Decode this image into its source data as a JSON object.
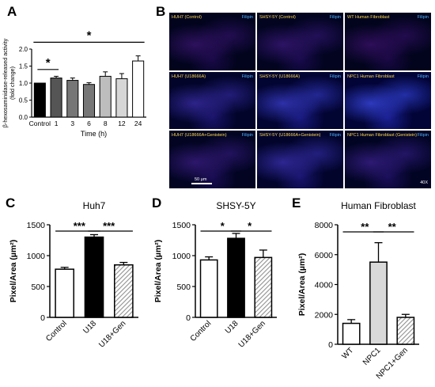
{
  "panels": {
    "a": "A",
    "b": "B",
    "c": "C",
    "d": "D",
    "e": "E"
  },
  "colors": {
    "black": "#000000",
    "dark_gray": "#555555",
    "mid_gray": "#767676",
    "light_gray": "#bdbdbd",
    "lighter_gray": "#d6d6d6",
    "white": "#ffffff",
    "hatch": "#909090"
  },
  "microscopy": {
    "stain": "Filipin",
    "scale_bar": "50 µm",
    "magnification": "40X",
    "cells": [
      {
        "title": "HUH7 (Control)",
        "stain": "Filipin",
        "intensity": 0.25
      },
      {
        "title": "SHSY-5Y (Control)",
        "stain": "Filipin",
        "intensity": 0.3
      },
      {
        "title": "WT Human Fibroblast",
        "stain": "Filipin",
        "intensity": 0.22
      },
      {
        "title": "HUH7 (U18666A)",
        "stain": "Filipin",
        "intensity": 0.55
      },
      {
        "title": "SHSY-5Y (U18666A)",
        "stain": "Filipin",
        "intensity": 0.75
      },
      {
        "title": "NPC1 Human Fibroblast",
        "stain": "Filipin",
        "intensity": 0.9
      },
      {
        "title": "HUH7 (U18666A+Genistein)",
        "stain": "Filipin",
        "intensity": 0.35
      },
      {
        "title": "SHSY-5Y (U18666A+Genistein)",
        "stain": "Filipin",
        "intensity": 0.6
      },
      {
        "title": "NPC1 Human Fibroblast (Genistein)",
        "stain": "Filipin",
        "intensity": 0.4
      }
    ]
  },
  "chart_data": [
    {
      "id": "A",
      "type": "bar",
      "title": "",
      "xlabel": "Time (h)",
      "ylabel": "β-hexosaminidase-released activity (fold change)",
      "ylim": [
        0,
        2.0
      ],
      "yticks": [
        "0.0",
        "0.5",
        "1.0",
        "1.5",
        "2.0"
      ],
      "categories": [
        "Control",
        "1",
        "3",
        "6",
        "8",
        "12",
        "24"
      ],
      "values": [
        1.0,
        1.15,
        1.08,
        0.96,
        1.2,
        1.13,
        1.65
      ],
      "errors": [
        0.0,
        0.05,
        0.07,
        0.05,
        0.13,
        0.15,
        0.15
      ],
      "bar_colors": [
        "#000000",
        "#555555",
        "#767676",
        "#767676",
        "#bdbdbd",
        "#d6d6d6",
        "#ffffff"
      ],
      "significance": [
        {
          "from": 0,
          "to": 1,
          "label": "*"
        },
        {
          "from": 0,
          "to": 6,
          "label": "*"
        }
      ]
    },
    {
      "id": "C",
      "type": "bar",
      "title": "Huh7",
      "xlabel": "",
      "ylabel": "Pixel/Area (µm²)",
      "ylim": [
        0,
        1500
      ],
      "yticks": [
        "0",
        "500",
        "1000",
        "1500"
      ],
      "categories": [
        "Control",
        "U18",
        "U18+Gen"
      ],
      "values": [
        780,
        1300,
        850
      ],
      "errors": [
        30,
        40,
        40
      ],
      "bar_styles": [
        "white",
        "black",
        "hatch"
      ],
      "significance": [
        {
          "from": 0,
          "to": 1,
          "label": "***"
        },
        {
          "from": 1,
          "to": 2,
          "label": "***"
        }
      ]
    },
    {
      "id": "D",
      "type": "bar",
      "title": "SHSY-5Y",
      "xlabel": "",
      "ylabel": "Pixel/Area (µm²)",
      "ylim": [
        0,
        1500
      ],
      "yticks": [
        "0",
        "500",
        "1000",
        "1500"
      ],
      "categories": [
        "Control",
        "U18",
        "U18+Gen"
      ],
      "values": [
        930,
        1280,
        970
      ],
      "errors": [
        50,
        80,
        120
      ],
      "bar_styles": [
        "white",
        "black",
        "hatch"
      ],
      "significance": [
        {
          "from": 0,
          "to": 1,
          "label": "*"
        },
        {
          "from": 1,
          "to": 2,
          "label": "*"
        }
      ]
    },
    {
      "id": "E",
      "type": "bar",
      "title": "Human Fibroblast",
      "xlabel": "",
      "ylabel": "Pixel/Area (µm²)",
      "ylim": [
        0,
        8000
      ],
      "yticks": [
        "0",
        "2000",
        "4000",
        "6000",
        "8000"
      ],
      "categories": [
        "WT",
        "NPC1",
        "NPC1+Gen"
      ],
      "values": [
        1400,
        5500,
        1800
      ],
      "errors": [
        250,
        1300,
        200
      ],
      "bar_styles": [
        "white",
        "lightgray",
        "hatch"
      ],
      "significance": [
        {
          "from": 0,
          "to": 1,
          "label": "**"
        },
        {
          "from": 1,
          "to": 2,
          "label": "**"
        }
      ]
    }
  ]
}
